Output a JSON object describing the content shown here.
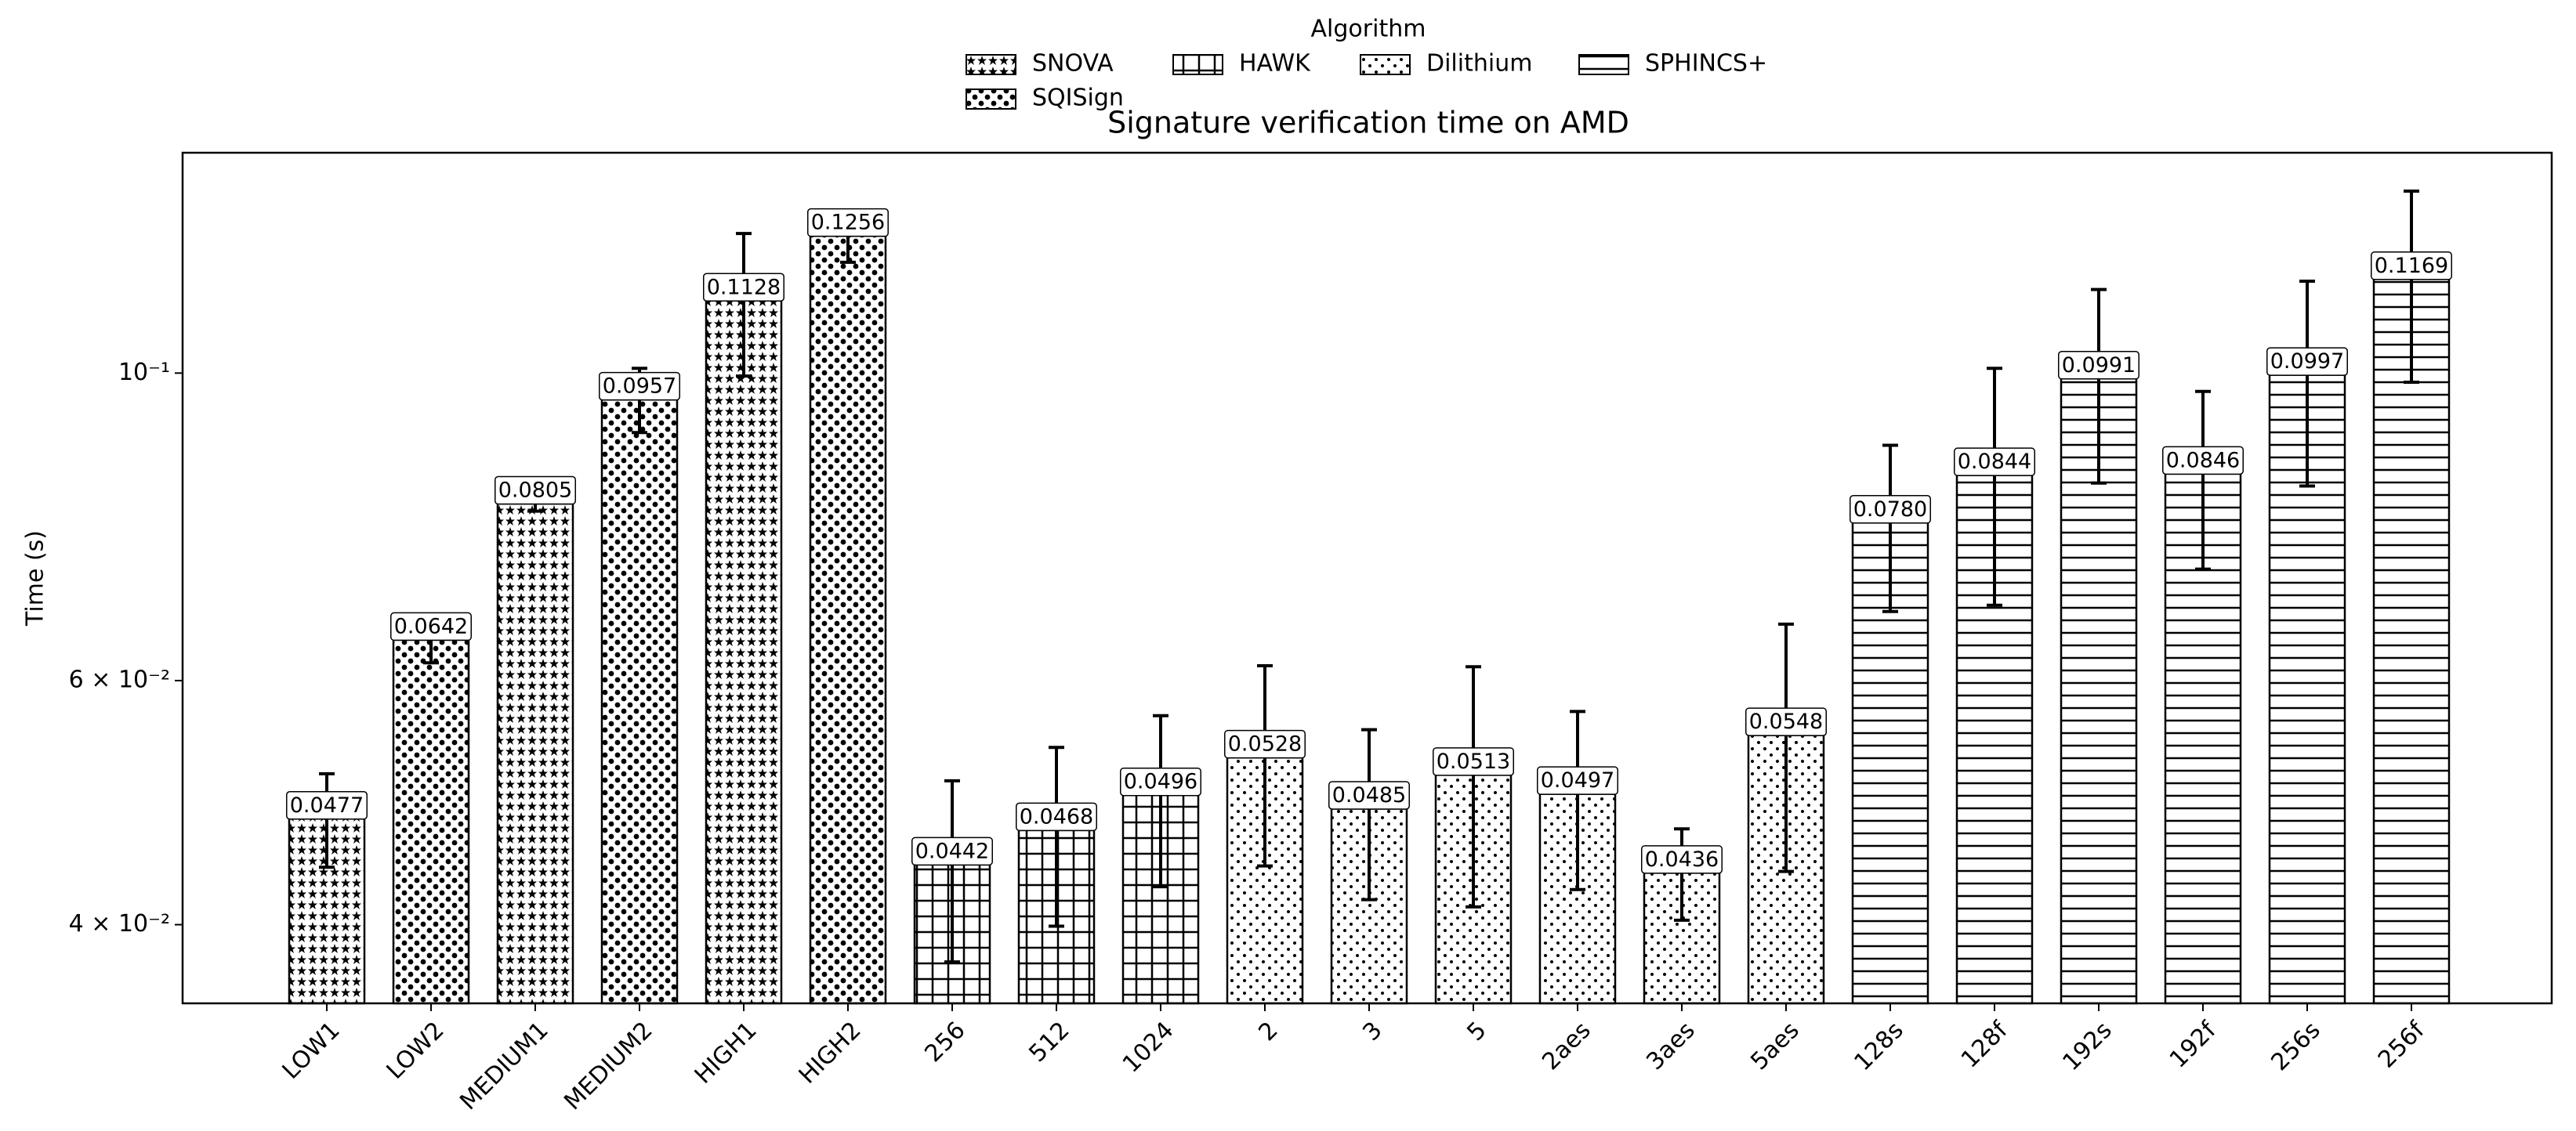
{
  "chart_data": {
    "type": "bar",
    "title": "Signature verification time on AMD",
    "ylabel": "Time (s)",
    "log_scale": true,
    "legend_title": "Algorithm",
    "legend_loc": "upper center",
    "ylim": [
      0.0351,
      0.1442
    ],
    "yticks": [
      {
        "value": 0.04,
        "label": "4 × 10⁻²"
      },
      {
        "value": 0.06,
        "label": "6 × 10⁻²"
      },
      {
        "value": 0.1,
        "label": "10⁻¹"
      }
    ],
    "series": [
      {
        "name": "SNOVA",
        "hatch": "stars",
        "color": "#ffffff",
        "categories": [
          "LOW1",
          "MEDIUM1",
          "HIGH1"
        ],
        "values": [
          0.0477,
          0.0805,
          0.1128
        ],
        "value_labels": [
          "0.0477",
          "0.0805",
          "0.1128"
        ],
        "errors": [
          0.0037,
          0.001,
          0.0133
        ]
      },
      {
        "name": "SQISign",
        "hatch": "circles",
        "color": "#ffffff",
        "categories": [
          "LOW2",
          "MEDIUM2",
          "HIGH2"
        ],
        "values": [
          0.0642,
          0.0957,
          0.1256
        ],
        "value_labels": [
          "0.0642",
          "0.0957",
          "0.1256"
        ],
        "errors": [
          0.0024,
          0.0051,
          0.0054
        ]
      },
      {
        "name": "HAWK",
        "hatch": "grid",
        "color": "#ffffff",
        "categories": [
          "256",
          "512",
          "1024"
        ],
        "values": [
          0.0442,
          0.0468,
          0.0496
        ],
        "value_labels": [
          "0.0442",
          "0.0468",
          "0.0496"
        ],
        "errors": [
          0.0066,
          0.0069,
          0.007
        ]
      },
      {
        "name": "Dilithium",
        "hatch": "dots",
        "color": "#ffffff",
        "categories": [
          "2",
          "3",
          "5",
          "2aes",
          "3aes",
          "5aes"
        ],
        "values": [
          0.0528,
          0.0485,
          0.0513,
          0.0497,
          0.0436,
          0.0548
        ],
        "value_labels": [
          "0.0528",
          "0.0485",
          "0.0513",
          "0.0497",
          "0.0436",
          "0.0548"
        ],
        "errors": [
          0.0087,
          0.0068,
          0.0101,
          0.0073,
          0.0033,
          0.0111
        ]
      },
      {
        "name": "SPHINCS+",
        "hatch": "hlines",
        "color": "#ffffff",
        "categories": [
          "128s",
          "128f",
          "192s",
          "192f",
          "256s",
          "256f"
        ],
        "values": [
          0.078,
          0.0844,
          0.0991,
          0.0846,
          0.0997,
          0.1169
        ],
        "value_labels": [
          "0.0780",
          "0.0844",
          "0.0991",
          "0.0846",
          "0.0997",
          "0.1169"
        ],
        "errors": [
          0.0107,
          0.0164,
          0.0158,
          0.0124,
          0.0168,
          0.0184
        ]
      }
    ],
    "x_order": [
      [
        "0",
        0
      ],
      [
        "1",
        0
      ],
      [
        "0",
        1
      ],
      [
        "1",
        1
      ],
      [
        "0",
        2
      ],
      [
        "1",
        2
      ],
      [
        "2",
        0
      ],
      [
        "2",
        1
      ],
      [
        "2",
        2
      ],
      [
        "3",
        0
      ],
      [
        "3",
        1
      ],
      [
        "3",
        2
      ],
      [
        "3",
        3
      ],
      [
        "3",
        4
      ],
      [
        "3",
        5
      ],
      [
        "4",
        0
      ],
      [
        "4",
        1
      ],
      [
        "4",
        2
      ],
      [
        "4",
        3
      ],
      [
        "4",
        4
      ],
      [
        "4",
        5
      ]
    ]
  }
}
